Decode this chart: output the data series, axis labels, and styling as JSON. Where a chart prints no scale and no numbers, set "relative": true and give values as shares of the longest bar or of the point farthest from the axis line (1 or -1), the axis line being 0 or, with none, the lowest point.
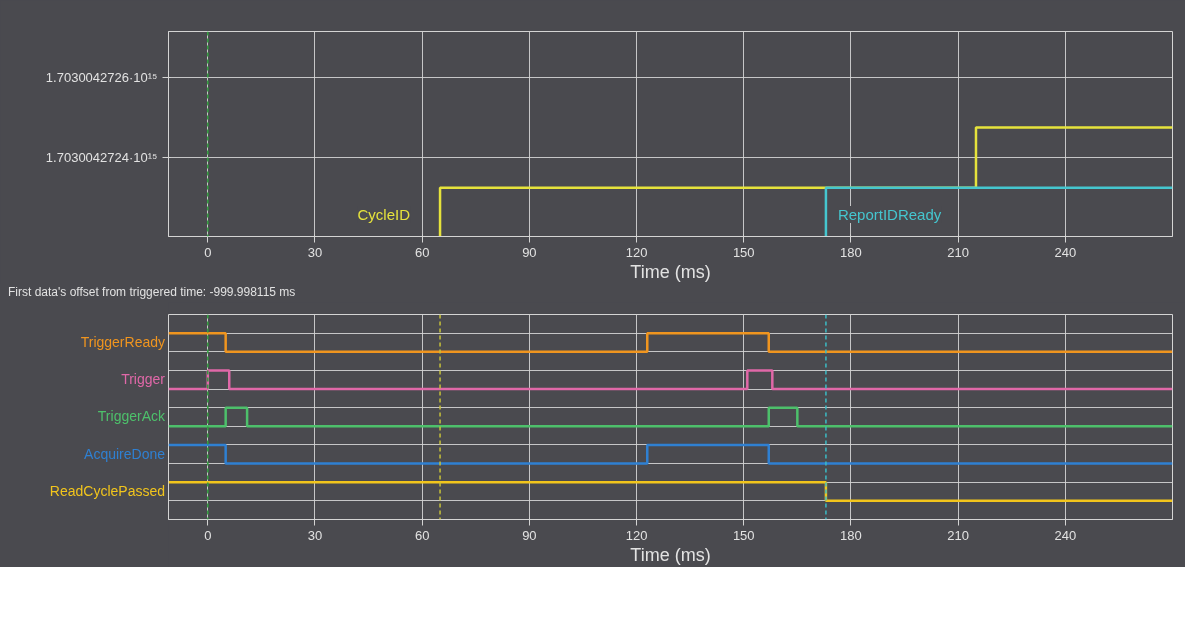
{
  "chart_data": [
    {
      "type": "step",
      "xlabel": "Time (ms)",
      "xlim": [
        -11,
        270
      ],
      "xticks": [
        0,
        30,
        60,
        90,
        120,
        150,
        180,
        210,
        240
      ],
      "ylim": [
        1703004272203000,
        1703004272715000
      ],
      "yticks": [
        {
          "value": 1703004272400000,
          "label": "1.7030042724·10¹⁵"
        },
        {
          "value": 1703004272600000,
          "label": "1.7030042726·10¹⁵"
        }
      ],
      "grid": true,
      "series": [
        {
          "name": "CycleID",
          "color": "#e6e33c",
          "x": [
            65,
            65,
            215,
            270
          ],
          "values": [
            1703004272203000,
            1703004272325000,
            1703004272475000,
            1703004272475000
          ]
        },
        {
          "name": "ReportIDReady",
          "color": "#45c6cf",
          "x": [
            173,
            173,
            270
          ],
          "values": [
            1703004272203000,
            1703004272325000,
            1703004272325000
          ]
        }
      ],
      "ref_lines": [
        {
          "axis": "x",
          "value": 0,
          "color": "#2f9e3c",
          "line_style": "dashed"
        }
      ],
      "annotations": [
        "First data's offset from triggered time: -999.998115 ms"
      ]
    },
    {
      "type": "step",
      "xlabel": "Time (ms)",
      "xlim": [
        -11,
        270
      ],
      "xticks": [
        0,
        30,
        60,
        90,
        120,
        150,
        180,
        210,
        240
      ],
      "relative": true,
      "grid": true,
      "tick_labels": "x",
      "series": [
        {
          "name": "TriggerReady",
          "color": "#f0951f",
          "x": [
            -11,
            5,
            123,
            157,
            270
          ],
          "values": [
            1,
            0.9,
            1,
            0.9,
            0.9
          ]
        },
        {
          "name": "Trigger",
          "color": "#e068a8",
          "x": [
            -11,
            0,
            6,
            151,
            158,
            270
          ],
          "values": [
            0.7,
            0.8,
            0.7,
            0.8,
            0.7,
            0.7
          ]
        },
        {
          "name": "TriggerAck",
          "color": "#4dc06b",
          "x": [
            -11,
            5,
            11,
            157,
            165,
            270
          ],
          "values": [
            0.5,
            0.6,
            0.5,
            0.6,
            0.5,
            0.5
          ]
        },
        {
          "name": "AcquireDone",
          "color": "#2f80d2",
          "x": [
            -11,
            5,
            123,
            157,
            270
          ],
          "values": [
            0.4,
            0.3,
            0.4,
            0.3,
            0.3
          ]
        },
        {
          "name": "ReadCyclePassed",
          "color": "#f2c51c",
          "x": [
            -11,
            173,
            270
          ],
          "values": [
            0.2,
            0.1,
            0.1
          ]
        }
      ],
      "ref_lines": [
        {
          "axis": "x",
          "value": 0,
          "color": "#2f9e3c",
          "line_style": "dashed"
        },
        {
          "axis": "x",
          "value": 65,
          "color": "#c8c33a",
          "line_style": "dashed"
        },
        {
          "axis": "x",
          "value": 173,
          "color": "#3bbcc6",
          "line_style": "dashed"
        }
      ]
    }
  ]
}
